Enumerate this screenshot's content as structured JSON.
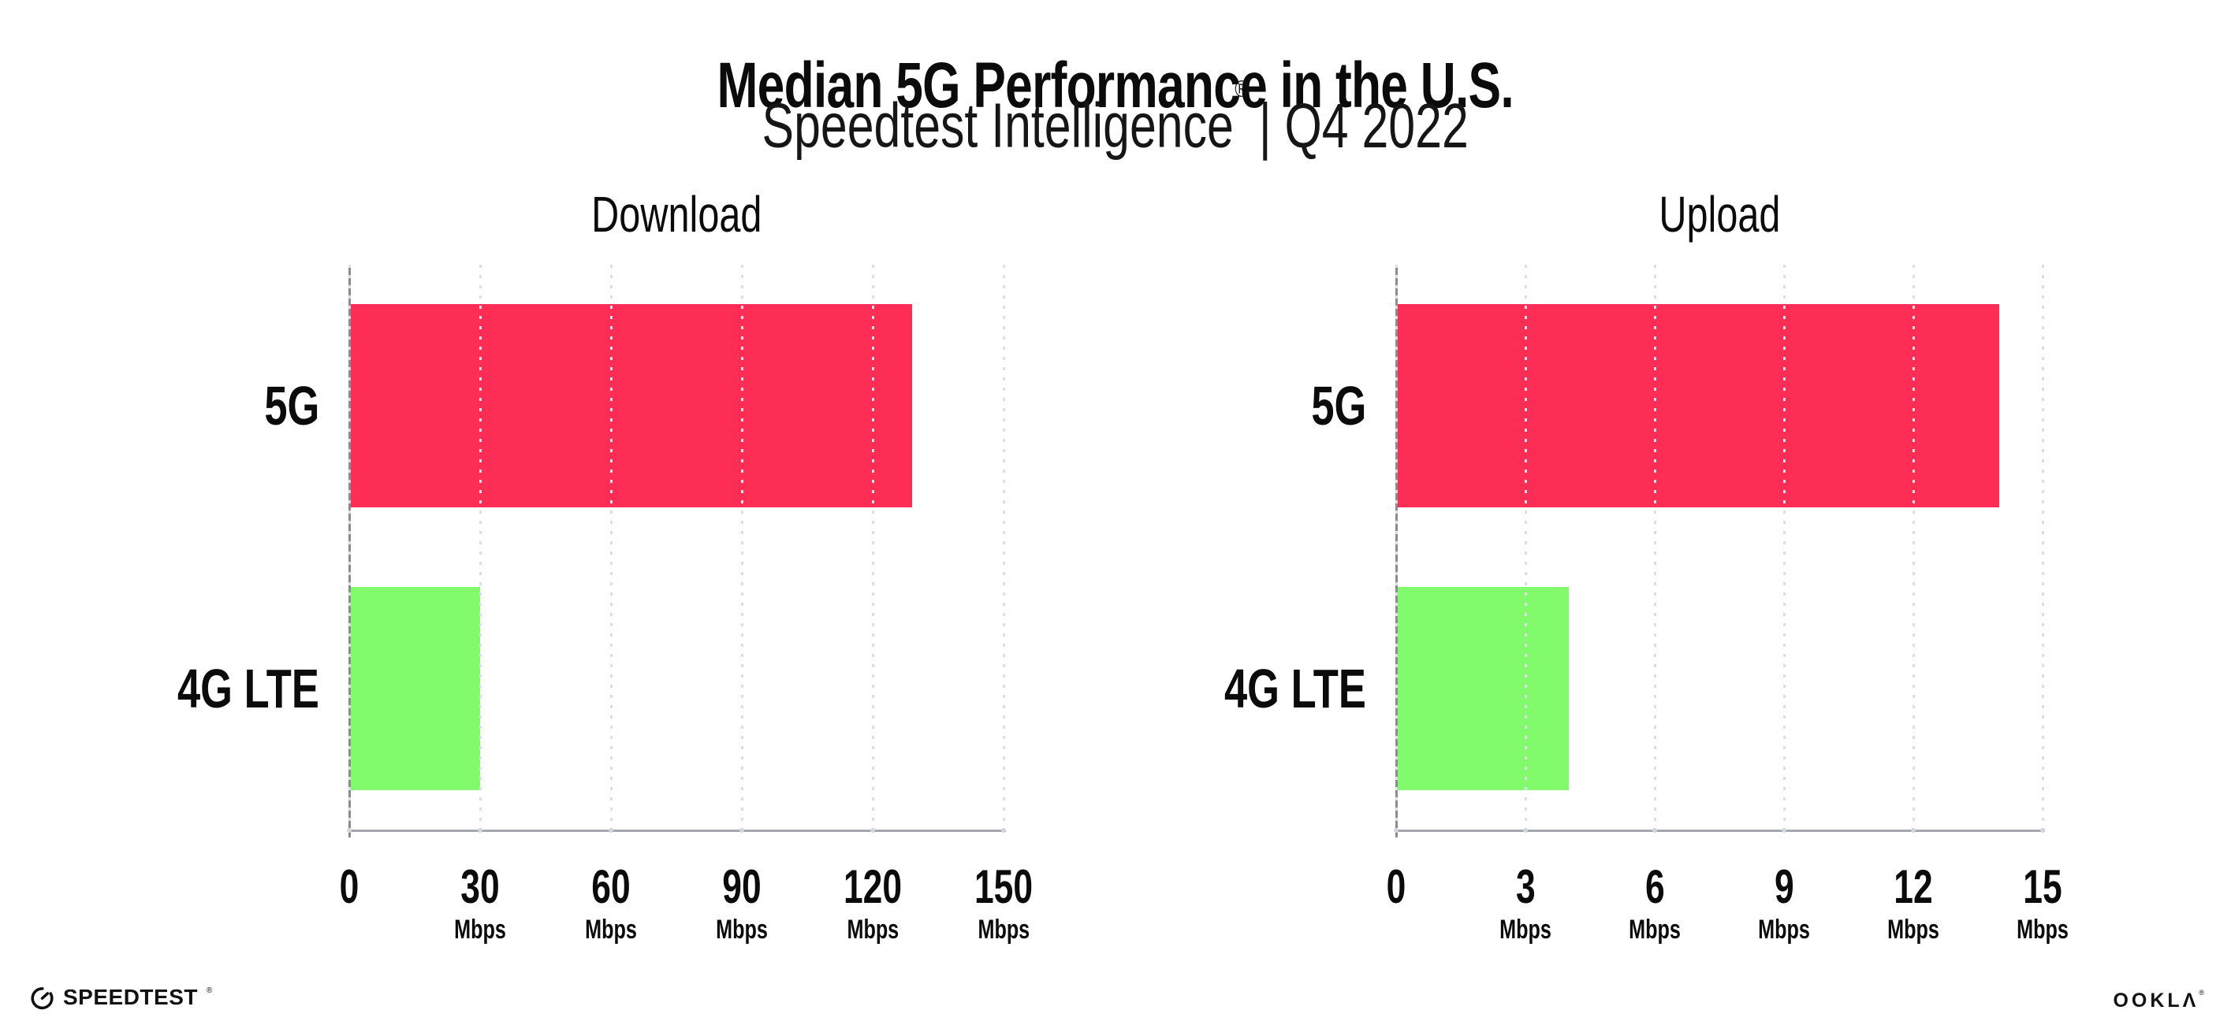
{
  "title": "Median 5G Performance in the U.S.",
  "subtitle": {
    "brand": "Speedtest Intelligence",
    "reg": "®",
    "rest": "| Q4 2022"
  },
  "colors": {
    "bar_5g": "#FD2D55",
    "bar_4g_lte": "#81FA6B",
    "grid": "#DDDDE8",
    "axis_x": "#A6A6AE",
    "axis_y": "#8B8B93",
    "text": "#0B0B0B"
  },
  "chart_data": [
    {
      "type": "bar",
      "orientation": "horizontal",
      "title": "Download",
      "categories": [
        "5G",
        "4G LTE"
      ],
      "values": [
        129,
        30
      ],
      "unit": "Mbps",
      "xlim": [
        0,
        150
      ],
      "xticks": [
        0,
        30,
        60,
        90,
        120,
        150
      ],
      "bar_colors": [
        "#FD2D55",
        "#81FA6B"
      ],
      "grid": "vertical-dotted",
      "legend": "none"
    },
    {
      "type": "bar",
      "orientation": "horizontal",
      "title": "Upload",
      "categories": [
        "5G",
        "4G LTE"
      ],
      "values": [
        14,
        4
      ],
      "unit": "Mbps",
      "xlim": [
        0,
        15
      ],
      "xticks": [
        0,
        3,
        6,
        9,
        12,
        15
      ],
      "bar_colors": [
        "#FD2D55",
        "#81FA6B"
      ],
      "grid": "vertical-dotted",
      "legend": "none"
    }
  ],
  "footer": {
    "speedtest": "SPEEDTEST",
    "speedtest_reg": "®",
    "ookla": "OOKLΛ",
    "ookla_reg": "®"
  }
}
